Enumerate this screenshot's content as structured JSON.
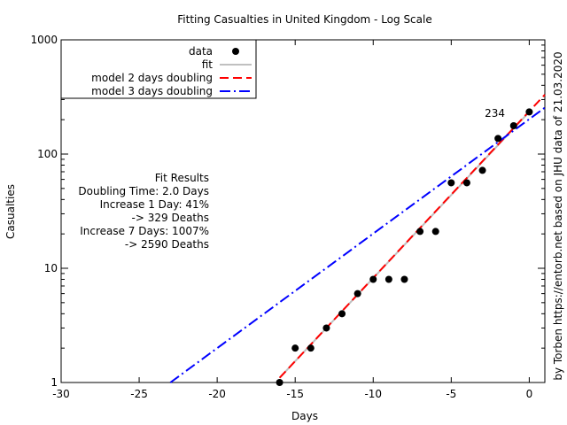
{
  "chart_data": {
    "type": "scatter",
    "title": "Fitting Casualties in United Kingdom - Log Scale",
    "xlabel": "Days",
    "ylabel": "Casualties",
    "xlim": [
      -30,
      1
    ],
    "ylim": [
      1,
      1000
    ],
    "yscale": "log",
    "grid": false,
    "legend_position": "top-left",
    "x_ticks": [
      -30,
      -25,
      -20,
      -15,
      -10,
      -5,
      0
    ],
    "x_tick_labels": [
      "-30",
      "-25",
      "-20",
      "-15",
      "-10",
      "-5",
      "0"
    ],
    "y_ticks": [
      1,
      10,
      100,
      1000
    ],
    "y_tick_labels": [
      "1",
      "10",
      "100",
      "1000"
    ],
    "series": [
      {
        "name": "data",
        "kind": "points",
        "color": "#000000",
        "x": [
          -16,
          -15,
          -14,
          -13,
          -12,
          -11,
          -10,
          -9,
          -8,
          -7,
          -6,
          -5,
          -4,
          -3,
          -2,
          -1,
          0
        ],
        "y": [
          1,
          2,
          2,
          3,
          4,
          6,
          8,
          8,
          8,
          21,
          21,
          56,
          56,
          72,
          137,
          177,
          234
        ]
      },
      {
        "name": "fit",
        "kind": "line",
        "color": "#c0c0c0",
        "x": [
          -16,
          0
        ],
        "y": [
          1.1,
          234
        ]
      },
      {
        "name": "model 2 days doubling",
        "kind": "dash",
        "color": "#ff0000",
        "x": [
          -16,
          1
        ],
        "y": [
          1.1,
          331
        ]
      },
      {
        "name": "model 3 days doubling",
        "kind": "dashdot",
        "color": "#0000ff",
        "x": [
          -23,
          1
        ],
        "y": [
          1,
          255
        ]
      }
    ],
    "annotations": {
      "last_value_label": "234",
      "fit_results": [
        "Fit Results",
        "Doubling Time: 2.0 Days",
        "Increase 1 Day: 41%",
        "-> 329 Deaths",
        "Increase 7 Days: 1007%",
        "-> 2590 Deaths"
      ],
      "credit": "by Torben https://entorb.net based on JHU data of 21.03.2020"
    }
  }
}
